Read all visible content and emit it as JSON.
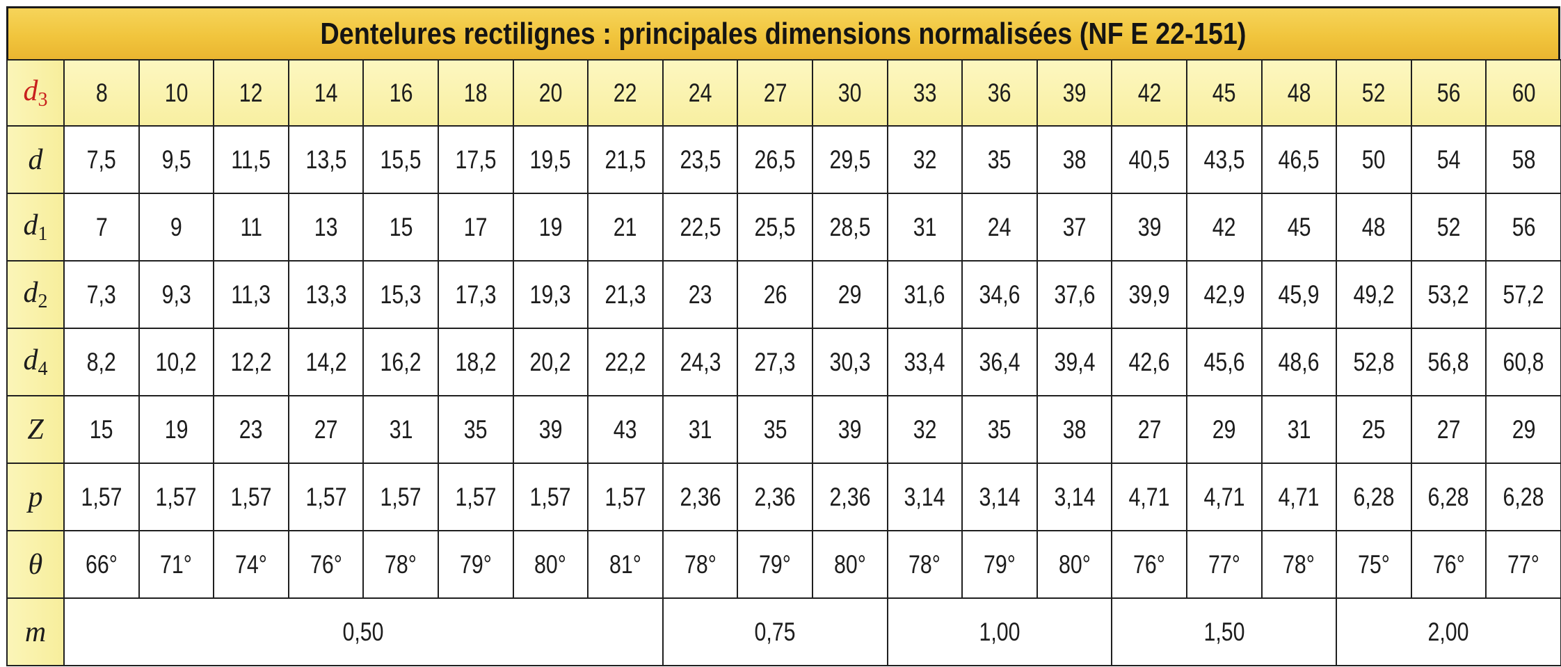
{
  "title": "Dentelures rectilignes : principales dimensions normalisées (NF E 22-151)",
  "colors": {
    "header_band": "#f1c53d",
    "row_head_bg": "#f8efa1",
    "d3_color": "#c8201d",
    "border": "#1f1f1f"
  },
  "groups": [
    8,
    3,
    3,
    3,
    3
  ],
  "rows": [
    {
      "sym": "d",
      "sub": "3",
      "red": true,
      "values": [
        "8",
        "10",
        "12",
        "14",
        "16",
        "18",
        "20",
        "22",
        "24",
        "27",
        "30",
        "33",
        "36",
        "39",
        "42",
        "45",
        "48",
        "52",
        "56",
        "60"
      ]
    },
    {
      "sym": "d",
      "sub": "",
      "values": [
        "7,5",
        "9,5",
        "11,5",
        "13,5",
        "15,5",
        "17,5",
        "19,5",
        "21,5",
        "23,5",
        "26,5",
        "29,5",
        "32",
        "35",
        "38",
        "40,5",
        "43,5",
        "46,5",
        "50",
        "54",
        "58"
      ]
    },
    {
      "sym": "d",
      "sub": "1",
      "values": [
        "7",
        "9",
        "11",
        "13",
        "15",
        "17",
        "19",
        "21",
        "22,5",
        "25,5",
        "28,5",
        "31",
        "24",
        "37",
        "39",
        "42",
        "45",
        "48",
        "52",
        "56"
      ]
    },
    {
      "sym": "d",
      "sub": "2",
      "values": [
        "7,3",
        "9,3",
        "11,3",
        "13,3",
        "15,3",
        "17,3",
        "19,3",
        "21,3",
        "23",
        "26",
        "29",
        "31,6",
        "34,6",
        "37,6",
        "39,9",
        "42,9",
        "45,9",
        "49,2",
        "53,2",
        "57,2"
      ]
    },
    {
      "sym": "d",
      "sub": "4",
      "values": [
        "8,2",
        "10,2",
        "12,2",
        "14,2",
        "16,2",
        "18,2",
        "20,2",
        "22,2",
        "24,3",
        "27,3",
        "30,3",
        "33,4",
        "36,4",
        "39,4",
        "42,6",
        "45,6",
        "48,6",
        "52,8",
        "56,8",
        "60,8"
      ]
    },
    {
      "sym": "Z",
      "sub": "",
      "values": [
        "15",
        "19",
        "23",
        "27",
        "31",
        "35",
        "39",
        "43",
        "31",
        "35",
        "39",
        "32",
        "35",
        "38",
        "27",
        "29",
        "31",
        "25",
        "27",
        "29"
      ]
    },
    {
      "sym": "p",
      "sub": "",
      "values": [
        "1,57",
        "1,57",
        "1,57",
        "1,57",
        "1,57",
        "1,57",
        "1,57",
        "1,57",
        "2,36",
        "2,36",
        "2,36",
        "3,14",
        "3,14",
        "3,14",
        "4,71",
        "4,71",
        "4,71",
        "6,28",
        "6,28",
        "6,28"
      ]
    },
    {
      "sym": "θ",
      "sub": "",
      "values": [
        "66°",
        "71°",
        "74°",
        "76°",
        "78°",
        "79°",
        "80°",
        "81°",
        "78°",
        "79°",
        "80°",
        "78°",
        "79°",
        "80°",
        "76°",
        "77°",
        "78°",
        "75°",
        "76°",
        "77°"
      ]
    }
  ],
  "m_row": {
    "sym": "m",
    "values": [
      "0,50",
      "0,75",
      "1,00",
      "1,50",
      "2,00"
    ]
  }
}
